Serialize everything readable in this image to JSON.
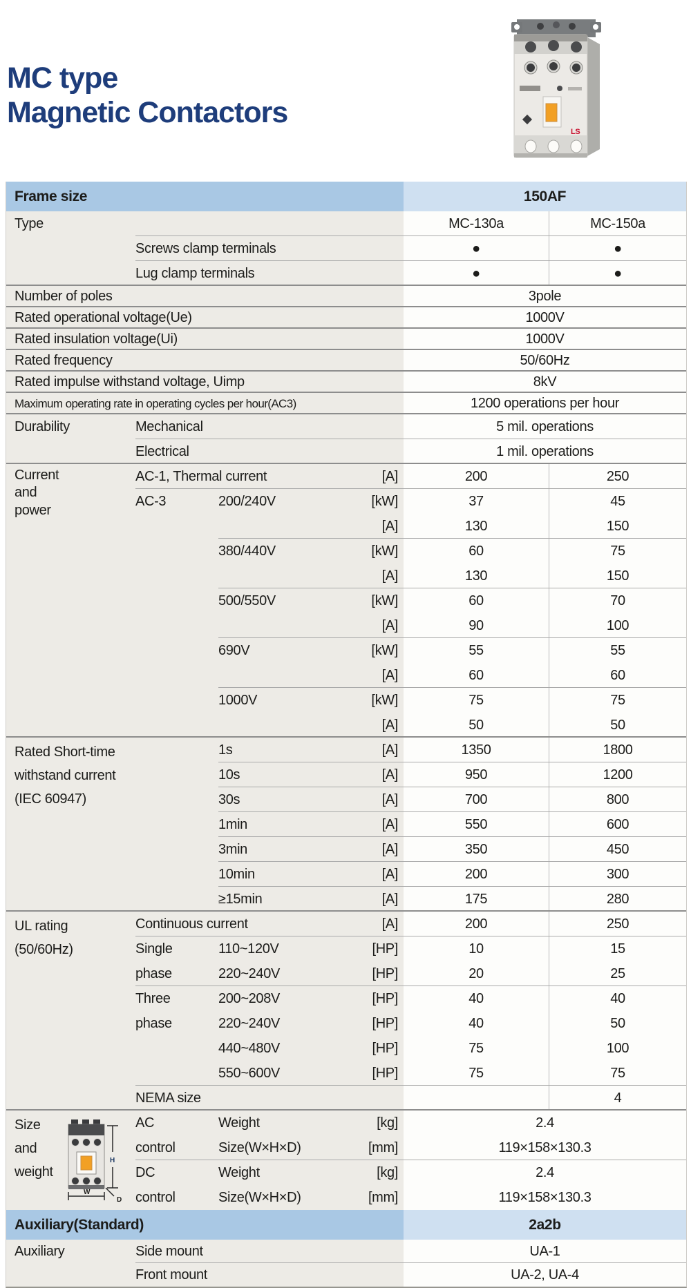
{
  "header": {
    "title_line1": "MC type",
    "title_line2": "Magnetic Contactors"
  },
  "photo": {
    "name": "mc-contactor-product-photo",
    "brand": "LS"
  },
  "diagram": {
    "name": "contactor-dimension-diagram",
    "h_label": "H",
    "w_label": "W",
    "d_label": "D"
  },
  "colors": {
    "title_navy": "#1e3d7b",
    "header_blue_dark": "#a9c8e4",
    "header_blue_light": "#cfe0f1",
    "label_gray": "#edebe6",
    "value_bg": "#fdfdfb",
    "orange_accent": "#f2a024",
    "brand_red": "#c8102e"
  },
  "table": {
    "rows": [
      {
        "kind": "blue",
        "a": "Frame size",
        "span": "150AF"
      },
      {
        "kind": "n",
        "a": "Type",
        "v1": "MC-130a",
        "v2": "MC-150a",
        "split": true
      },
      {
        "kind": "n",
        "b": "Screws clamp terminals",
        "v1": "●",
        "v2": "●",
        "split": true,
        "line": "b"
      },
      {
        "kind": "n",
        "b": "Lug clamp terminals",
        "v1": "●",
        "v2": "●",
        "split": true,
        "line": "b"
      },
      {
        "kind": "s",
        "a": "Number of poles",
        "span": "3pole",
        "line": "full"
      },
      {
        "kind": "s",
        "a": "Rated operational voltage(Ue)",
        "span": "1000V",
        "line": "full"
      },
      {
        "kind": "s",
        "a": "Rated insulation voltage(Ui)",
        "span": "1000V",
        "line": "full"
      },
      {
        "kind": "s",
        "a": "Rated frequency",
        "span": "50/60Hz",
        "line": "full"
      },
      {
        "kind": "s",
        "a": "Rated impulse withstand voltage, Uimp",
        "span": "8kV",
        "line": "full"
      },
      {
        "kind": "s",
        "a": "Maximum operating rate in operating cycles per hour(AC3)",
        "aClass": "cond",
        "span": "1200 operations per hour",
        "line": "full"
      },
      {
        "kind": "n",
        "a": "Durability",
        "b": "Mechanical",
        "span": "5 mil. operations",
        "line": "full"
      },
      {
        "kind": "n",
        "b": "Electrical",
        "span": "1 mil. operations",
        "line": "b"
      },
      {
        "kind": "n",
        "a": "Current\nand\npower",
        "aClass": "tight",
        "b": "AC-1, Thermal current",
        "unit": "[A]",
        "v1": "200",
        "v2": "250",
        "split": true,
        "line": "full"
      },
      {
        "kind": "n",
        "b": "AC-3",
        "c": "200/240V",
        "unit": "[kW]",
        "v1": "37",
        "v2": "45",
        "split": true,
        "line": "b"
      },
      {
        "kind": "n",
        "unit": "[A]",
        "v1": "130",
        "v2": "150",
        "split": true
      },
      {
        "kind": "n",
        "c": "380/440V",
        "unit": "[kW]",
        "v1": "60",
        "v2": "75",
        "split": true,
        "line": "c"
      },
      {
        "kind": "n",
        "unit": "[A]",
        "v1": "130",
        "v2": "150",
        "split": true
      },
      {
        "kind": "n",
        "c": "500/550V",
        "unit": "[kW]",
        "v1": "60",
        "v2": "70",
        "split": true,
        "line": "c"
      },
      {
        "kind": "n",
        "unit": "[A]",
        "v1": "90",
        "v2": "100",
        "split": true
      },
      {
        "kind": "n",
        "c": "690V",
        "unit": "[kW]",
        "v1": "55",
        "v2": "55",
        "split": true,
        "line": "c"
      },
      {
        "kind": "n",
        "unit": "[A]",
        "v1": "60",
        "v2": "60",
        "split": true
      },
      {
        "kind": "n",
        "c": "1000V",
        "unit": "[kW]",
        "v1": "75",
        "v2": "75",
        "split": true,
        "line": "c"
      },
      {
        "kind": "n",
        "unit": "[A]",
        "v1": "50",
        "v2": "50",
        "split": true
      },
      {
        "kind": "n",
        "a": "Rated Short-time\nwithstand current\n(IEC 60947)",
        "c": "1s",
        "unit": "[A]",
        "v1": "1350",
        "v2": "1800",
        "split": true,
        "line": "full"
      },
      {
        "kind": "n",
        "c": "10s",
        "unit": "[A]",
        "v1": "950",
        "v2": "1200",
        "split": true,
        "line": "c"
      },
      {
        "kind": "n",
        "c": "30s",
        "unit": "[A]",
        "v1": "700",
        "v2": "800",
        "split": true,
        "line": "c"
      },
      {
        "kind": "n",
        "c": "1min",
        "unit": "[A]",
        "v1": "550",
        "v2": "600",
        "split": true,
        "line": "c"
      },
      {
        "kind": "n",
        "c": "3min",
        "unit": "[A]",
        "v1": "350",
        "v2": "450",
        "split": true,
        "line": "c"
      },
      {
        "kind": "n",
        "c": "10min",
        "unit": "[A]",
        "v1": "200",
        "v2": "300",
        "split": true,
        "line": "c"
      },
      {
        "kind": "n",
        "c": "≥15min",
        "unit": "[A]",
        "v1": "175",
        "v2": "280",
        "split": true,
        "line": "c"
      },
      {
        "kind": "n",
        "a": "UL rating\n(50/60Hz)",
        "b": "Continuous current",
        "unit": "[A]",
        "v1": "200",
        "v2": "250",
        "split": true,
        "line": "full"
      },
      {
        "kind": "n",
        "b": "Single",
        "c": "110~120V",
        "unit": "[HP]",
        "v1": "10",
        "v2": "15",
        "split": true,
        "line": "b"
      },
      {
        "kind": "n",
        "b": "phase",
        "c": "220~240V",
        "unit": "[HP]",
        "v1": "20",
        "v2": "25",
        "split": true
      },
      {
        "kind": "n",
        "b": "Three",
        "c": "200~208V",
        "unit": "[HP]",
        "v1": "40",
        "v2": "40",
        "split": true,
        "line": "b"
      },
      {
        "kind": "n",
        "b": "phase",
        "c": "220~240V",
        "unit": "[HP]",
        "v1": "40",
        "v2": "50",
        "split": true
      },
      {
        "kind": "n",
        "c": "440~480V",
        "unit": "[HP]",
        "v1": "75",
        "v2": "100",
        "split": true
      },
      {
        "kind": "n",
        "c": "550~600V",
        "unit": "[HP]",
        "v1": "75",
        "v2": "75",
        "split": true
      },
      {
        "kind": "n",
        "b": "NEMA size",
        "v1": "",
        "v2": "4",
        "split": true,
        "line": "b"
      },
      {
        "kind": "n",
        "a": "Size\nand\nweight",
        "b": "AC",
        "c": "Weight",
        "unit": "[kg]",
        "span": "2.4",
        "line": "full"
      },
      {
        "kind": "n",
        "b": "control",
        "c": "Size(W×H×D)",
        "unit": "[mm]",
        "span": "119×158×130.3"
      },
      {
        "kind": "n",
        "b": "DC",
        "c": "Weight",
        "unit": "[kg]",
        "span": "2.4",
        "line": "b"
      },
      {
        "kind": "n",
        "b": "control",
        "c": "Size(W×H×D)",
        "unit": "[mm]",
        "span": "119×158×130.3"
      },
      {
        "kind": "blue",
        "a": "Auxiliary(Standard)",
        "span": "2a2b"
      },
      {
        "kind": "x",
        "a": "Auxiliary",
        "b": "Side mount",
        "span": "UA-1"
      },
      {
        "kind": "x",
        "b": "Front mount",
        "span": "UA-2, UA-4",
        "line": "b"
      }
    ]
  }
}
